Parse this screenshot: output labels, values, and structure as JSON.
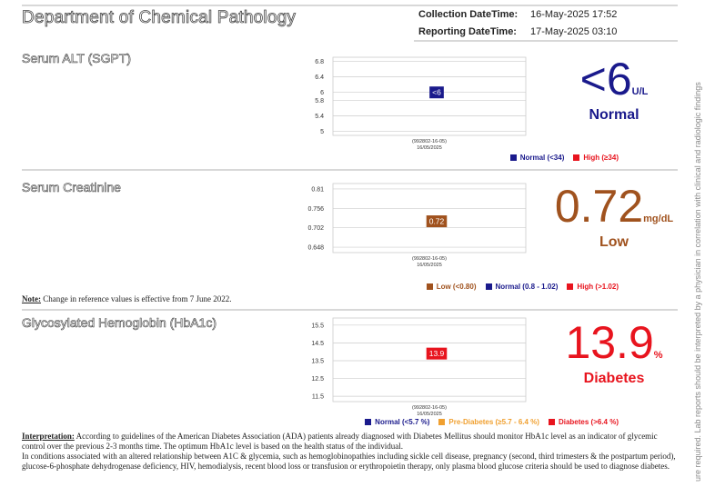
{
  "header": {
    "title": "Department of Chemical Pathology",
    "fields": [
      {
        "label": "Collection DateTime:",
        "value": "16-May-2025 17:52"
      },
      {
        "label": "Reporting DateTime:",
        "value": "17-May-2025 03:10"
      }
    ]
  },
  "tests": [
    {
      "name": "Serum ALT (SGPT)",
      "chart": {
        "ylim": [
          4.9,
          6.9
        ],
        "yticks": [
          6.8,
          6.4,
          6,
          5.8,
          5.4,
          5
        ],
        "value": 6,
        "value_label": "<6",
        "color": "#1a1a8c",
        "x_label": [
          "(992802-16-05)",
          "16/05/2025"
        ]
      },
      "result": {
        "value": "<6",
        "unit": "U/L",
        "status": "Normal",
        "color": "#1a1a8c"
      },
      "legend": [
        {
          "label": "Normal (<34)",
          "color": "#1a1a8c"
        },
        {
          "label": "High (≥34)",
          "color": "#e8141e"
        }
      ]
    },
    {
      "name": "Serum Creatinine",
      "chart": {
        "ylim": [
          0.633,
          0.825
        ],
        "yticks": [
          0.81,
          0.756,
          0.702,
          0.648
        ],
        "value": 0.72,
        "color": "#a0521e",
        "x_label": [
          "(992802-16-05)",
          "16/05/2025"
        ]
      },
      "result": {
        "value": 0.72,
        "unit": "mg/dL",
        "status": "Low",
        "color": "#a0521e"
      },
      "legend": [
        {
          "label": "Low (<0.80)",
          "color": "#a0521e"
        },
        {
          "label": "Normal (0.8 - 1.02)",
          "color": "#1a1a8c"
        },
        {
          "label": "High (>1.02)",
          "color": "#e8141e"
        }
      ],
      "note": {
        "label": "Note:",
        "text": "Change in reference values is effective from 7 June 2022."
      }
    },
    {
      "name": "Glycosylated Hemoglobin (HbA1c)",
      "chart": {
        "ylim": [
          11.2,
          15.9
        ],
        "yticks": [
          15.5,
          14.5,
          13.5,
          12.5,
          11.5
        ],
        "value": 13.9,
        "color": "#e8141e",
        "x_label": [
          "(992802-16-05)",
          "16/05/2025"
        ]
      },
      "result": {
        "value": 13.9,
        "unit": "%",
        "status": "Diabetes",
        "color": "#e8141e"
      },
      "legend": [
        {
          "label": "Normal (<5.7 %)",
          "color": "#1a1a8c"
        },
        {
          "label": "Pre-Diabetes (≥5.7 - 6.4 %)",
          "color": "#f0a030"
        },
        {
          "label": "Diabetes (>6.4 %)",
          "color": "#e8141e"
        }
      ]
    }
  ],
  "interpretation": {
    "label": "Interpretation:",
    "paragraphs": [
      "According to guidelines of the American Diabetes Association (ADA) patients already diagnosed with Diabetes Mellitus should monitor HbA1c level as an indicator of glycemic control over the previous 2-3 months time. The optimum HbA1c level is based on the health status of the individual.",
      "In conditions associated with an altered relationship between A1C & glycemia, such as hemoglobinopathies including sickle cell disease, pregnancy (second, third trimesters & the postpartum period), glucose-6-phosphate dehydrogenase deficiency, HIV, hemodialysis, recent blood loss or transfusion or erythropoietin therapy, only plasma blood glucose criteria should be used to diagnose diabetes."
    ]
  },
  "side_note": "ure required. Lab reports should be interpreted by a physician in correlation with clinical and radiologic findings"
}
